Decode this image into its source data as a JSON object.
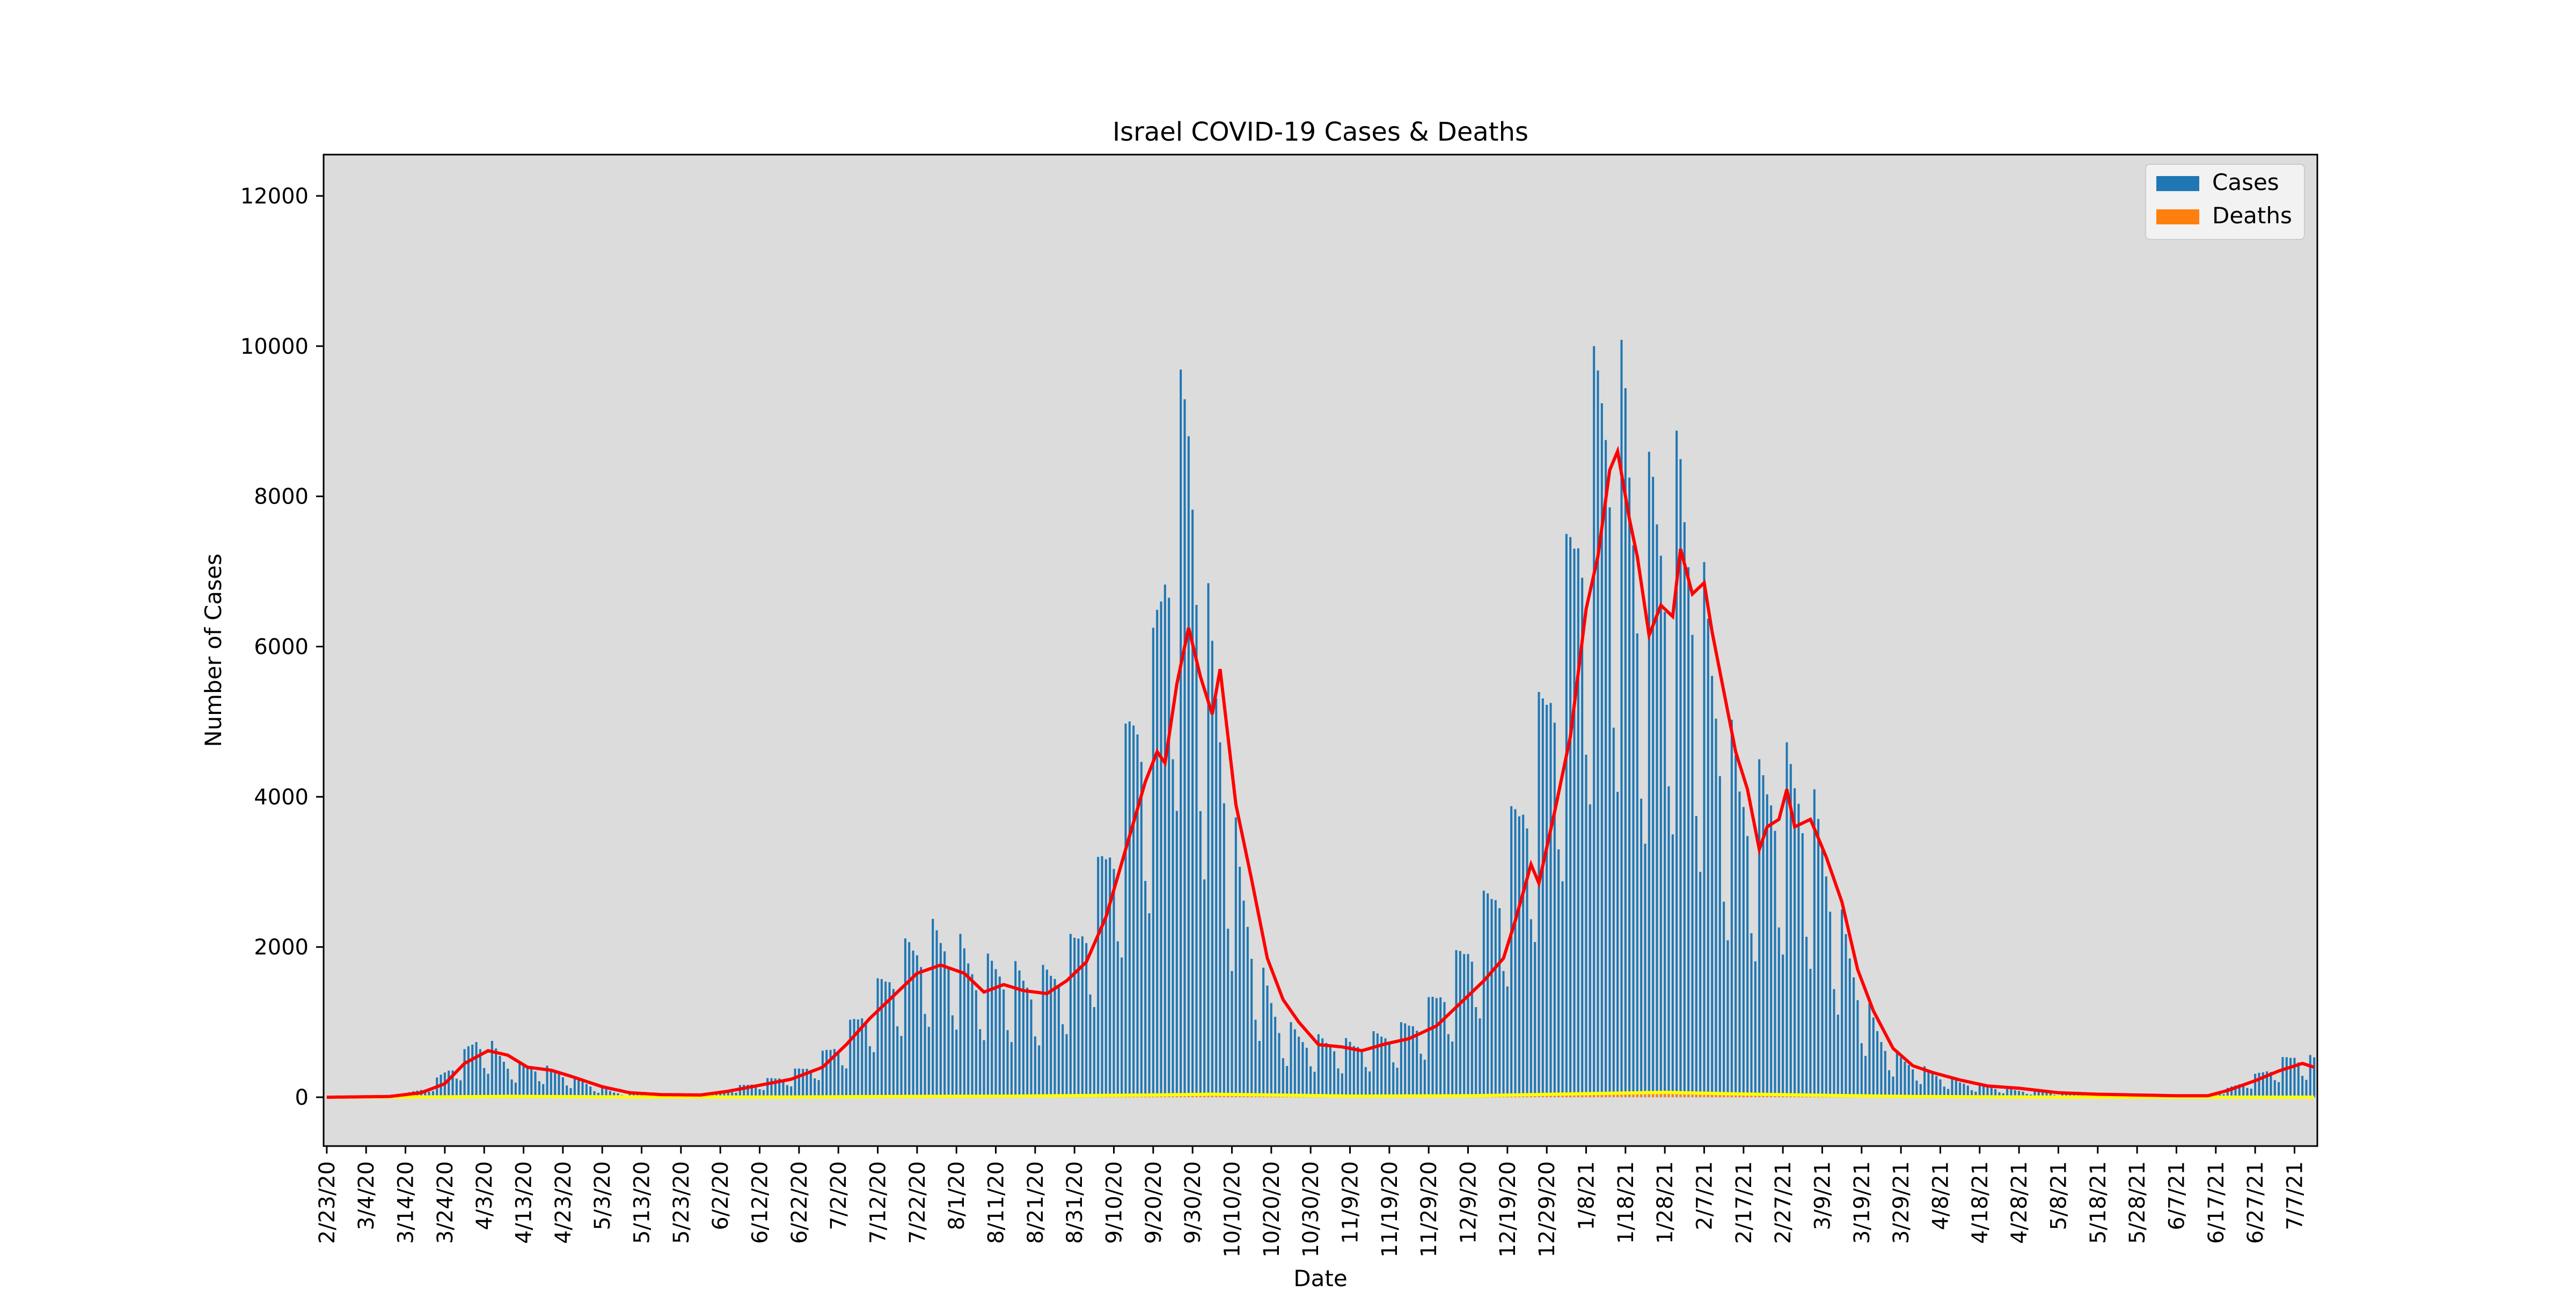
{
  "chart_data": {
    "type": "bar",
    "title": "Israel COVID-19 Cases & Deaths",
    "xlabel": "Date",
    "ylabel": "Number of Cases",
    "ylim": [
      -650,
      12550
    ],
    "yticks": [
      0,
      2000,
      4000,
      6000,
      8000,
      10000,
      12000
    ],
    "x_tick_labels": [
      "2/23/20",
      "3/4/20",
      "3/14/20",
      "3/24/20",
      "4/3/20",
      "4/13/20",
      "4/23/20",
      "5/3/20",
      "5/13/20",
      "5/23/20",
      "6/2/20",
      "6/12/20",
      "6/22/20",
      "7/2/20",
      "7/12/20",
      "7/22/20",
      "8/1/20",
      "8/11/20",
      "8/21/20",
      "8/31/20",
      "9/10/20",
      "9/20/20",
      "9/30/20",
      "10/10/20",
      "10/20/20",
      "10/30/20",
      "11/9/20",
      "11/19/20",
      "11/29/20",
      "12/9/20",
      "12/19/20",
      "12/29/20",
      "1/8/21",
      "1/18/21",
      "1/28/21",
      "2/7/21",
      "2/17/21",
      "2/27/21",
      "3/9/21",
      "3/19/21",
      "3/29/21",
      "4/8/21",
      "4/18/21",
      "4/28/21",
      "5/8/21",
      "5/18/21",
      "5/28/21",
      "6/7/21",
      "6/17/21",
      "6/27/21",
      "7/7/21"
    ],
    "legend": {
      "position": "top-right",
      "entries": [
        "Cases",
        "Deaths"
      ]
    },
    "grid": false,
    "background": "#dcdcdc",
    "colors": {
      "cases": "#1f77b4",
      "deaths": "#ff7f0e",
      "cases_avg": "#ff0000",
      "deaths_avg": "#ffff00"
    },
    "x_start_date": "2/23/20",
    "cases_keypoints": [
      [
        "2/23/20",
        0
      ],
      [
        "3/8/20",
        10
      ],
      [
        "3/14/20",
        40
      ],
      [
        "3/20/20",
        120
      ],
      [
        "3/24/20",
        300
      ],
      [
        "3/28/20",
        450
      ],
      [
        "4/1/20",
        700
      ],
      [
        "4/5/20",
        600
      ],
      [
        "4/9/20",
        400
      ],
      [
        "4/13/20",
        380
      ],
      [
        "4/18/20",
        350
      ],
      [
        "4/23/20",
        280
      ],
      [
        "4/30/20",
        150
      ],
      [
        "5/6/20",
        60
      ],
      [
        "5/13/20",
        30
      ],
      [
        "5/23/20",
        20
      ],
      [
        "5/30/20",
        40
      ],
      [
        "6/4/20",
        100
      ],
      [
        "6/12/20",
        180
      ],
      [
        "6/18/20",
        250
      ],
      [
        "6/25/20",
        380
      ],
      [
        "7/2/20",
        650
      ],
      [
        "7/8/20",
        1000
      ],
      [
        "7/14/20",
        1400
      ],
      [
        "7/20/20",
        1750
      ],
      [
        "7/26/20",
        1900
      ],
      [
        "8/1/20",
        1800
      ],
      [
        "8/6/20",
        1500
      ],
      [
        "8/11/20",
        1550
      ],
      [
        "8/16/20",
        1450
      ],
      [
        "8/21/20",
        1350
      ],
      [
        "8/26/20",
        1500
      ],
      [
        "8/31/20",
        1800
      ],
      [
        "9/5/20",
        2400
      ],
      [
        "9/10/20",
        3200
      ],
      [
        "9/15/20",
        4500
      ],
      [
        "9/20/20",
        5000
      ],
      [
        "9/25/20",
        7500
      ],
      [
        "9/29/20",
        8000
      ],
      [
        "10/3/20",
        5800
      ],
      [
        "10/7/20",
        4500
      ],
      [
        "10/12/20",
        2600
      ],
      [
        "10/17/20",
        1500
      ],
      [
        "10/22/20",
        900
      ],
      [
        "10/28/20",
        700
      ],
      [
        "11/4/20",
        650
      ],
      [
        "11/10/20",
        620
      ],
      [
        "11/16/20",
        720
      ],
      [
        "11/22/20",
        800
      ],
      [
        "11/28/20",
        1000
      ],
      [
        "12/4/20",
        1400
      ],
      [
        "12/10/20",
        1900
      ],
      [
        "12/16/20",
        2500
      ],
      [
        "12/22/20",
        3400
      ],
      [
        "12/28/20",
        4500
      ],
      [
        "1/3/21",
        6000
      ],
      [
        "1/8/21",
        7600
      ],
      [
        "1/12/21",
        8400
      ],
      [
        "1/18/21",
        8000
      ],
      [
        "1/21/21",
        6500
      ],
      [
        "1/25/21",
        7000
      ],
      [
        "1/28/21",
        6800
      ],
      [
        "2/1/21",
        7200
      ],
      [
        "2/6/21",
        6000
      ],
      [
        "2/11/21",
        4500
      ],
      [
        "2/16/21",
        3700
      ],
      [
        "2/21/21",
        3600
      ],
      [
        "2/27/21",
        3800
      ],
      [
        "3/4/21",
        3700
      ],
      [
        "3/9/21",
        3000
      ],
      [
        "3/14/21",
        2000
      ],
      [
        "3/19/21",
        1200
      ],
      [
        "3/24/21",
        700
      ],
      [
        "3/29/21",
        450
      ],
      [
        "4/3/21",
        350
      ],
      [
        "4/8/21",
        250
      ],
      [
        "4/13/21",
        180
      ],
      [
        "4/18/21",
        140
      ],
      [
        "4/23/21",
        110
      ],
      [
        "4/28/21",
        80
      ],
      [
        "5/8/21",
        50
      ],
      [
        "5/18/21",
        40
      ],
      [
        "5/28/21",
        30
      ],
      [
        "6/7/21",
        20
      ],
      [
        "6/15/21",
        15
      ],
      [
        "6/20/21",
        100
      ],
      [
        "6/27/21",
        250
      ],
      [
        "7/2/21",
        380
      ],
      [
        "7/7/21",
        500
      ],
      [
        "7/11/21",
        450
      ]
    ],
    "cases_avg_keypoints": [
      [
        "2/23/20",
        0
      ],
      [
        "3/10/20",
        10
      ],
      [
        "3/18/20",
        60
      ],
      [
        "3/24/20",
        180
      ],
      [
        "3/29/20",
        450
      ],
      [
        "4/4/20",
        620
      ],
      [
        "4/9/20",
        560
      ],
      [
        "4/14/20",
        400
      ],
      [
        "4/20/20",
        360
      ],
      [
        "4/25/20",
        280
      ],
      [
        "5/3/20",
        140
      ],
      [
        "5/10/20",
        60
      ],
      [
        "5/18/20",
        35
      ],
      [
        "5/28/20",
        30
      ],
      [
        "6/4/20",
        80
      ],
      [
        "6/12/20",
        160
      ],
      [
        "6/20/20",
        240
      ],
      [
        "6/28/20",
        400
      ],
      [
        "7/4/20",
        700
      ],
      [
        "7/10/20",
        1050
      ],
      [
        "7/16/20",
        1350
      ],
      [
        "7/22/20",
        1650
      ],
      [
        "7/28/20",
        1760
      ],
      [
        "8/3/20",
        1650
      ],
      [
        "8/8/20",
        1400
      ],
      [
        "8/13/20",
        1500
      ],
      [
        "8/18/20",
        1420
      ],
      [
        "8/24/20",
        1380
      ],
      [
        "8/29/20",
        1550
      ],
      [
        "9/3/20",
        1800
      ],
      [
        "9/8/20",
        2400
      ],
      [
        "9/13/20",
        3300
      ],
      [
        "9/18/20",
        4200
      ],
      [
        "9/21/20",
        4600
      ],
      [
        "9/23/20",
        4450
      ],
      [
        "9/26/20",
        5500
      ],
      [
        "9/29/20",
        6250
      ],
      [
        "10/2/20",
        5600
      ],
      [
        "10/5/20",
        5100
      ],
      [
        "10/7/20",
        5700
      ],
      [
        "10/11/20",
        3900
      ],
      [
        "10/15/20",
        2900
      ],
      [
        "10/19/20",
        1850
      ],
      [
        "10/23/20",
        1300
      ],
      [
        "10/27/20",
        1000
      ],
      [
        "11/1/20",
        700
      ],
      [
        "11/7/20",
        670
      ],
      [
        "11/12/20",
        620
      ],
      [
        "11/18/20",
        710
      ],
      [
        "11/24/20",
        780
      ],
      [
        "12/1/20",
        950
      ],
      [
        "12/7/20",
        1250
      ],
      [
        "12/13/20",
        1550
      ],
      [
        "12/18/20",
        1850
      ],
      [
        "12/21/20",
        2350
      ],
      [
        "12/25/20",
        3100
      ],
      [
        "12/27/20",
        2850
      ],
      [
        "12/31/20",
        3800
      ],
      [
        "1/4/21",
        4800
      ],
      [
        "1/8/21",
        6500
      ],
      [
        "1/11/21",
        7200
      ],
      [
        "1/14/21",
        8350
      ],
      [
        "1/16/21",
        8600
      ],
      [
        "1/19/21",
        7700
      ],
      [
        "1/21/21",
        7200
      ],
      [
        "1/24/21",
        6150
      ],
      [
        "1/27/21",
        6550
      ],
      [
        "1/30/21",
        6400
      ],
      [
        "2/1/21",
        7300
      ],
      [
        "2/4/21",
        6700
      ],
      [
        "2/7/21",
        6850
      ],
      [
        "2/9/21",
        6200
      ],
      [
        "2/12/21",
        5400
      ],
      [
        "2/15/21",
        4600
      ],
      [
        "2/18/21",
        4100
      ],
      [
        "2/21/21",
        3300
      ],
      [
        "2/23/21",
        3600
      ],
      [
        "2/26/21",
        3700
      ],
      [
        "2/28/21",
        4100
      ],
      [
        "3/2/21",
        3600
      ],
      [
        "3/6/21",
        3700
      ],
      [
        "3/10/21",
        3200
      ],
      [
        "3/14/21",
        2600
      ],
      [
        "3/18/21",
        1700
      ],
      [
        "3/22/21",
        1150
      ],
      [
        "3/27/21",
        650
      ],
      [
        "4/1/21",
        420
      ],
      [
        "4/6/21",
        330
      ],
      [
        "4/13/21",
        230
      ],
      [
        "4/20/21",
        150
      ],
      [
        "4/28/21",
        120
      ],
      [
        "5/8/21",
        60
      ],
      [
        "5/18/21",
        40
      ],
      [
        "5/28/21",
        30
      ],
      [
        "6/7/21",
        20
      ],
      [
        "6/15/21",
        20
      ],
      [
        "6/20/21",
        90
      ],
      [
        "6/27/21",
        220
      ],
      [
        "7/3/21",
        350
      ],
      [
        "7/9/21",
        450
      ],
      [
        "7/12/21",
        400
      ]
    ],
    "deaths_keypoints": [
      [
        "2/23/20",
        0
      ],
      [
        "3/24/20",
        5
      ],
      [
        "4/10/20",
        12
      ],
      [
        "5/10/20",
        4
      ],
      [
        "6/20/20",
        3
      ],
      [
        "7/15/20",
        10
      ],
      [
        "8/15/20",
        15
      ],
      [
        "9/20/20",
        30
      ],
      [
        "10/5/20",
        40
      ],
      [
        "10/20/20",
        30
      ],
      [
        "11/10/20",
        15
      ],
      [
        "12/10/20",
        20
      ],
      [
        "1/10/21",
        50
      ],
      [
        "1/28/21",
        65
      ],
      [
        "2/15/21",
        45
      ],
      [
        "3/10/21",
        25
      ],
      [
        "4/1/21",
        10
      ],
      [
        "5/1/21",
        3
      ],
      [
        "6/1/21",
        1
      ],
      [
        "7/11/21",
        1
      ]
    ]
  }
}
